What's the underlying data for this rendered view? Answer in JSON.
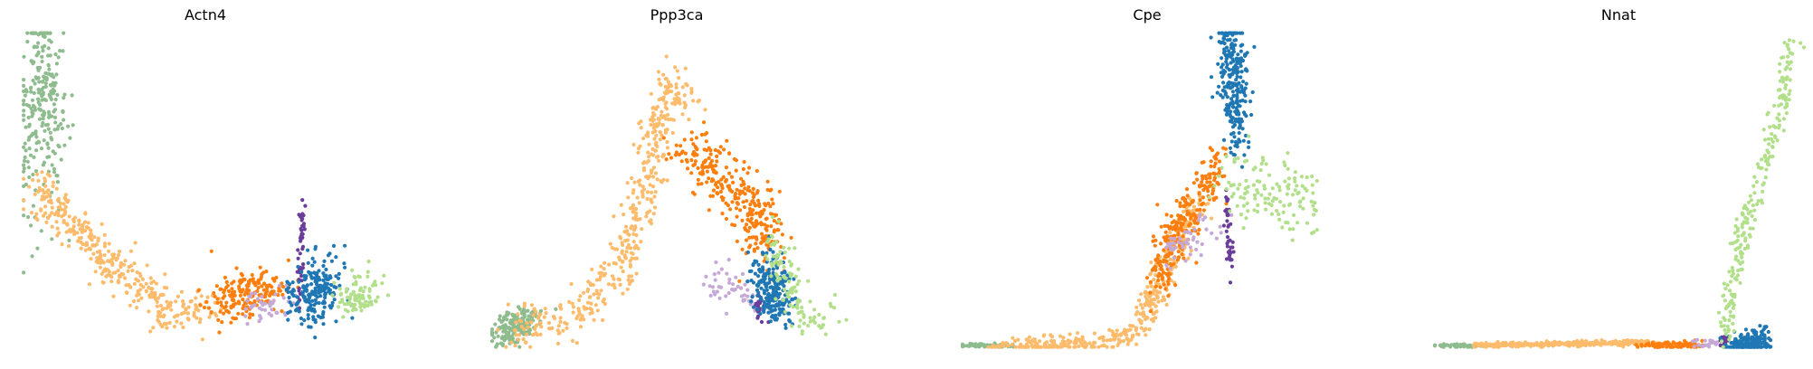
{
  "chart_data": [
    {
      "type": "scatter",
      "title": "Actn4",
      "axes": false,
      "grid": false,
      "legend": "none",
      "colors": {
        "green": "#8fbc8f",
        "lightorange": "#fdbb6c",
        "orange": "#ff7f0e",
        "lilac": "#c5a9d6",
        "purple": "#6a3d9a",
        "blue": "#1f77b4",
        "lightgreen": "#b2df8a"
      },
      "clusters": [
        {
          "color": "green",
          "n": 260,
          "path": [
            [
              0.0,
              0.55
            ],
            [
              0.05,
              0.95
            ],
            [
              0.08,
              0.62
            ]
          ],
          "spread": [
            0.022,
            0.14
          ]
        },
        {
          "color": "lightorange",
          "n": 360,
          "path": [
            [
              0.02,
              0.5
            ],
            [
              0.08,
              0.45
            ],
            [
              0.25,
              0.25
            ],
            [
              0.4,
              0.1
            ],
            [
              0.52,
              0.12
            ]
          ],
          "spread": [
            0.025,
            0.035
          ]
        },
        {
          "color": "orange",
          "n": 180,
          "path": [
            [
              0.53,
              0.13
            ],
            [
              0.62,
              0.18
            ],
            [
              0.72,
              0.18
            ]
          ],
          "spread": [
            0.03,
            0.04
          ]
        },
        {
          "color": "lilac",
          "n": 45,
          "path": [
            [
              0.62,
              0.12
            ],
            [
              0.72,
              0.14
            ]
          ],
          "spread": [
            0.02,
            0.025
          ]
        },
        {
          "color": "purple",
          "n": 45,
          "path": [
            [
              0.77,
              0.44
            ],
            [
              0.76,
              0.12
            ]
          ],
          "spread": [
            0.005,
            0.02
          ]
        },
        {
          "color": "blue",
          "n": 210,
          "path": [
            [
              0.76,
              0.15
            ],
            [
              0.85,
              0.2
            ]
          ],
          "spread": [
            0.03,
            0.05
          ]
        },
        {
          "color": "lightgreen",
          "n": 90,
          "path": [
            [
              0.88,
              0.15
            ],
            [
              0.98,
              0.17
            ]
          ],
          "spread": [
            0.02,
            0.035
          ]
        }
      ]
    },
    {
      "type": "scatter",
      "title": "Ppp3ca",
      "axes": false,
      "grid": false,
      "legend": "none",
      "colors": {
        "green": "#8fbc8f",
        "lightorange": "#fdbb6c",
        "orange": "#ff7f0e",
        "lilac": "#c5a9d6",
        "purple": "#6a3d9a",
        "blue": "#1f77b4",
        "lightgreen": "#b2df8a"
      },
      "clusters": [
        {
          "color": "green",
          "n": 180,
          "path": [
            [
              0.01,
              0.03
            ],
            [
              0.1,
              0.09
            ]
          ],
          "spread": [
            0.022,
            0.025
          ]
        },
        {
          "color": "lightorange",
          "n": 420,
          "path": [
            [
              0.05,
              0.04
            ],
            [
              0.2,
              0.08
            ],
            [
              0.35,
              0.25
            ],
            [
              0.42,
              0.55
            ],
            [
              0.48,
              0.85
            ],
            [
              0.53,
              0.78
            ]
          ],
          "spread": [
            0.022,
            0.04
          ]
        },
        {
          "color": "orange",
          "n": 300,
          "path": [
            [
              0.52,
              0.65
            ],
            [
              0.62,
              0.55
            ],
            [
              0.72,
              0.45
            ],
            [
              0.75,
              0.3
            ]
          ],
          "spread": [
            0.03,
            0.045
          ]
        },
        {
          "color": "lilac",
          "n": 50,
          "path": [
            [
              0.6,
              0.22
            ],
            [
              0.72,
              0.13
            ]
          ],
          "spread": [
            0.02,
            0.03
          ]
        },
        {
          "color": "purple",
          "n": 20,
          "path": [
            [
              0.72,
              0.15
            ],
            [
              0.74,
              0.1
            ]
          ],
          "spread": [
            0.008,
            0.02
          ]
        },
        {
          "color": "blue",
          "n": 220,
          "path": [
            [
              0.74,
              0.25
            ],
            [
              0.79,
              0.1
            ]
          ],
          "spread": [
            0.025,
            0.04
          ]
        },
        {
          "color": "lightgreen",
          "n": 110,
          "path": [
            [
              0.77,
              0.35
            ],
            [
              0.84,
              0.1
            ],
            [
              0.94,
              0.08
            ]
          ],
          "spread": [
            0.022,
            0.03
          ]
        }
      ]
    },
    {
      "type": "scatter",
      "title": "Cpe",
      "axes": false,
      "grid": false,
      "legend": "none",
      "colors": {
        "green": "#8fbc8f",
        "lightorange": "#fdbb6c",
        "orange": "#ff7f0e",
        "lilac": "#c5a9d6",
        "purple": "#6a3d9a",
        "blue": "#1f77b4",
        "lightgreen": "#b2df8a"
      },
      "clusters": [
        {
          "color": "green",
          "n": 70,
          "path": [
            [
              0.0,
              0.0
            ],
            [
              0.12,
              0.0
            ]
          ],
          "spread": [
            0.02,
            0.003
          ]
        },
        {
          "color": "lightorange",
          "n": 400,
          "path": [
            [
              0.08,
              0.0
            ],
            [
              0.4,
              0.01
            ],
            [
              0.48,
              0.05
            ],
            [
              0.55,
              0.25
            ],
            [
              0.65,
              0.48
            ]
          ],
          "spread": [
            0.02,
            0.015
          ]
        },
        {
          "color": "orange",
          "n": 250,
          "path": [
            [
              0.52,
              0.2
            ],
            [
              0.58,
              0.35
            ],
            [
              0.65,
              0.5
            ],
            [
              0.7,
              0.58
            ]
          ],
          "spread": [
            0.018,
            0.045
          ]
        },
        {
          "color": "lilac",
          "n": 50,
          "path": [
            [
              0.55,
              0.28
            ],
            [
              0.7,
              0.4
            ]
          ],
          "spread": [
            0.02,
            0.03
          ]
        },
        {
          "color": "purple",
          "n": 40,
          "path": [
            [
              0.72,
              0.48
            ],
            [
              0.73,
              0.25
            ]
          ],
          "spread": [
            0.005,
            0.02
          ]
        },
        {
          "color": "blue",
          "n": 260,
          "path": [
            [
              0.72,
              0.98
            ],
            [
              0.76,
              0.72
            ]
          ],
          "spread": [
            0.018,
            0.08
          ]
        },
        {
          "color": "lightgreen",
          "n": 130,
          "path": [
            [
              0.73,
              0.55
            ],
            [
              0.82,
              0.5
            ],
            [
              0.95,
              0.45
            ]
          ],
          "spread": [
            0.03,
            0.06
          ]
        }
      ]
    },
    {
      "type": "scatter",
      "title": "Nnat",
      "axes": false,
      "grid": false,
      "legend": "none",
      "colors": {
        "green": "#8fbc8f",
        "lightorange": "#fdbb6c",
        "orange": "#ff7f0e",
        "lilac": "#c5a9d6",
        "purple": "#6a3d9a",
        "blue": "#1f77b4",
        "lightgreen": "#b2df8a"
      },
      "clusters": [
        {
          "color": "green",
          "n": 70,
          "path": [
            [
              0.0,
              0.0
            ],
            [
              0.12,
              0.0
            ]
          ],
          "spread": [
            0.02,
            0.003
          ]
        },
        {
          "color": "lightorange",
          "n": 300,
          "path": [
            [
              0.1,
              0.0
            ],
            [
              0.58,
              0.01
            ]
          ],
          "spread": [
            0.02,
            0.004
          ]
        },
        {
          "color": "orange",
          "n": 90,
          "path": [
            [
              0.57,
              0.0
            ],
            [
              0.72,
              0.0
            ]
          ],
          "spread": [
            0.015,
            0.006
          ]
        },
        {
          "color": "lilac",
          "n": 25,
          "path": [
            [
              0.7,
              0.01
            ],
            [
              0.78,
              0.01
            ]
          ],
          "spread": [
            0.012,
            0.008
          ]
        },
        {
          "color": "purple",
          "n": 15,
          "path": [
            [
              0.78,
              0.01
            ],
            [
              0.8,
              0.02
            ]
          ],
          "spread": [
            0.006,
            0.01
          ]
        },
        {
          "color": "blue",
          "n": 160,
          "path": [
            [
              0.82,
              0.0
            ],
            [
              0.9,
              0.02
            ]
          ],
          "spread": [
            0.022,
            0.02
          ]
        },
        {
          "color": "lightgreen",
          "n": 230,
          "path": [
            [
              0.79,
              0.05
            ],
            [
              0.84,
              0.35
            ],
            [
              0.92,
              0.65
            ],
            [
              0.98,
              0.98
            ]
          ],
          "spread": [
            0.012,
            0.03
          ]
        }
      ]
    }
  ]
}
